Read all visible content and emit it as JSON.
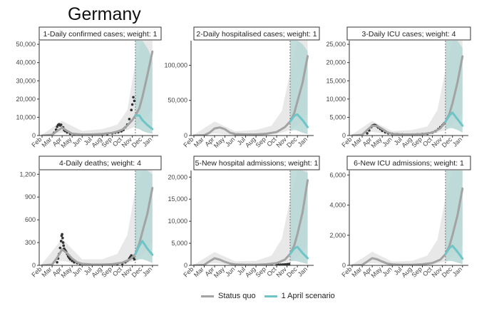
{
  "figure_title": "Germany",
  "colors": {
    "status_quo": "#a3a3a3",
    "april_scenario": "#6ec4c6",
    "band_status_quo": "#e8e8e8",
    "band_april": "#b5d7d5",
    "observed": "#333333"
  },
  "legend": [
    {
      "label": "Status quo",
      "color": "#a3a3a3"
    },
    {
      "label": "1 April scenario",
      "color": "#6ec4c6"
    }
  ],
  "chart_data": [
    {
      "type": "line",
      "title": "1-Daily confirmed cases; weight: 1",
      "x_ticks": [
        "Feb",
        "Mar",
        "Apr",
        "May",
        "Jun",
        "Jul",
        "Aug",
        "Sep",
        "Oct",
        "Nov",
        "Dec",
        "Jan"
      ],
      "y_ticks": [
        "0",
        "10,000",
        "20,000",
        "30,000",
        "40,000",
        "50,000"
      ],
      "ylim": [
        0,
        52000
      ],
      "vline_month": 9.3,
      "series": [
        {
          "name": "Status quo",
          "x": [
            0,
            1,
            1.5,
            2,
            2.5,
            3,
            4,
            5,
            6,
            7,
            7.5,
            8,
            8.5,
            9,
            9.3,
            9.7,
            10,
            10.5,
            11
          ],
          "y": [
            0,
            400,
            2500,
            4300,
            2500,
            1000,
            500,
            600,
            900,
            1500,
            2200,
            3200,
            5500,
            8500,
            11000,
            15000,
            21000,
            33000,
            46000
          ]
        },
        {
          "name": "1 April scenario",
          "x": [
            9.3,
            9.7,
            10,
            10.5,
            11
          ],
          "y": [
            11000,
            11000,
            8500,
            5800,
            3500
          ]
        }
      ],
      "band_status_quo": {
        "x": [
          0,
          2,
          4,
          6,
          7.5,
          8.5,
          9.3,
          10,
          10.5,
          11
        ],
        "lo": [
          0,
          1500,
          300,
          600,
          1200,
          3000,
          5000,
          8000,
          10000,
          14000
        ],
        "hi": [
          500,
          8000,
          2500,
          3500,
          6000,
          14000,
          40000,
          75000,
          100000,
          130000
        ]
      },
      "band_april": {
        "x": [
          9.3,
          9.7,
          10,
          10.5,
          11
        ],
        "lo": [
          4000,
          3500,
          2500,
          1500,
          1000
        ],
        "hi": [
          60000,
          60000,
          55000,
          48000,
          42000
        ]
      },
      "observed": {
        "x": [
          1.2,
          1.4,
          1.5,
          1.6,
          1.7,
          1.8,
          1.9,
          2,
          2.1,
          2.2,
          2.3,
          2.5,
          2.8,
          3.2,
          4,
          5,
          6,
          6.5,
          7,
          7.3,
          7.6,
          7.9,
          8.1,
          8.3,
          8.5,
          8.7,
          8.9,
          9,
          9.1,
          9.2
        ],
        "y": [
          1500,
          3200,
          4800,
          5800,
          6200,
          5500,
          5900,
          4200,
          4500,
          3000,
          2500,
          1700,
          1000,
          700,
          400,
          300,
          500,
          800,
          1200,
          1600,
          1800,
          2300,
          3000,
          4500,
          6000,
          9000,
          14000,
          17000,
          21000,
          19000
        ]
      }
    },
    {
      "type": "line",
      "title": "2-Daily hospitalised cases; weight: 1",
      "x_ticks": [
        "Feb",
        "Mar",
        "Apr",
        "May",
        "Jun",
        "Jul",
        "Aug",
        "Sep",
        "Oct",
        "Nov",
        "Dec",
        "Jan"
      ],
      "y_ticks": [
        "0",
        "50,000",
        "100,000"
      ],
      "ylim": [
        0,
        135000
      ],
      "vline_month": 9.3,
      "series": [
        {
          "name": "Status quo",
          "x": [
            0,
            1,
            1.5,
            2,
            2.5,
            3,
            3.5,
            4,
            5,
            6,
            7,
            8,
            8.8,
            9.3,
            9.7,
            10,
            10.5,
            11
          ],
          "y": [
            0,
            500,
            4000,
            10000,
            11500,
            9000,
            4000,
            2000,
            1500,
            1500,
            2500,
            5000,
            12000,
            20000,
            32000,
            48000,
            75000,
            113000
          ]
        },
        {
          "name": "1 April scenario",
          "x": [
            9.3,
            9.7,
            10,
            10.5,
            11
          ],
          "y": [
            20000,
            28000,
            30000,
            22000,
            12000
          ]
        }
      ],
      "band_status_quo": {
        "x": [
          0,
          2,
          4,
          6,
          7.5,
          8.5,
          9.3,
          10,
          10.5,
          11
        ],
        "lo": [
          0,
          3000,
          500,
          800,
          1500,
          4000,
          8000,
          15000,
          22000,
          30000
        ],
        "hi": [
          1000,
          20000,
          6000,
          8000,
          14000,
          35000,
          90000,
          180000,
          250000,
          300000
        ]
      },
      "band_april": {
        "x": [
          9.3,
          9.7,
          10,
          10.5,
          11
        ],
        "lo": [
          6000,
          8000,
          7000,
          4000,
          2000
        ],
        "hi": [
          140000,
          140000,
          140000,
          130000,
          120000
        ]
      },
      "observed": {
        "x": [],
        "y": []
      }
    },
    {
      "type": "line",
      "title": "3-Daily ICU cases; weight: 4",
      "x_ticks": [
        "Feb",
        "Mar",
        "Apr",
        "May",
        "Jun",
        "Jul",
        "Aug",
        "Sep",
        "Oct",
        "Nov",
        "Dec",
        "Jan"
      ],
      "y_ticks": [
        "0",
        "5,000",
        "10,000",
        "15,000",
        "20,000",
        "25,000"
      ],
      "ylim": [
        0,
        26000
      ],
      "vline_month": 9.3,
      "series": [
        {
          "name": "Status quo",
          "x": [
            0,
            1,
            1.5,
            2,
            2.5,
            3,
            3.5,
            4,
            5,
            6,
            7,
            8,
            8.8,
            9.3,
            9.7,
            10,
            10.5,
            11
          ],
          "y": [
            0,
            200,
            1500,
            2700,
            2600,
            1800,
            900,
            450,
            300,
            300,
            400,
            800,
            2000,
            3800,
            6000,
            8800,
            14500,
            21700
          ]
        },
        {
          "name": "1 April scenario",
          "x": [
            9.3,
            9.7,
            10,
            10.5,
            11
          ],
          "y": [
            3800,
            5500,
            6300,
            4500,
            2700
          ]
        }
      ],
      "band_status_quo": {
        "x": [
          0,
          2,
          4,
          6,
          7.5,
          8.5,
          9.3,
          10,
          10.5,
          11
        ],
        "lo": [
          0,
          1000,
          200,
          200,
          300,
          800,
          1500,
          3000,
          4500,
          6000
        ],
        "hi": [
          300,
          4000,
          1200,
          1500,
          2500,
          7000,
          18000,
          34000,
          45000,
          60000
        ]
      },
      "band_april": {
        "x": [
          9.3,
          9.7,
          10,
          10.5,
          11
        ],
        "lo": [
          1500,
          2000,
          2000,
          1500,
          800
        ],
        "hi": [
          27000,
          27000,
          27000,
          26000,
          24000
        ]
      },
      "observed": {
        "x": [
          1.5,
          1.7,
          1.9,
          2,
          2.1,
          2.2,
          2.3,
          2.4,
          2.5,
          2.6,
          2.8,
          3,
          3.3,
          3.6,
          4,
          4.5,
          5,
          5.5,
          6,
          6.5,
          7,
          7.5,
          8,
          8.3,
          8.6,
          8.8,
          9,
          9.1,
          9.2
        ],
        "y": [
          600,
          1400,
          2300,
          2700,
          2800,
          2900,
          2850,
          2700,
          2500,
          2200,
          1800,
          1300,
          900,
          600,
          450,
          350,
          280,
          250,
          250,
          300,
          400,
          500,
          800,
          1200,
          1800,
          2300,
          2800,
          3100,
          3400
        ]
      }
    },
    {
      "type": "line",
      "title": "4-Daily deaths; weight: 4",
      "x_ticks": [
        "Feb",
        "Mar",
        "Apr",
        "May",
        "Jun",
        "Jul",
        "Aug",
        "Sep",
        "Oct",
        "Nov",
        "Dec",
        "Jan"
      ],
      "y_ticks": [
        "0",
        "300",
        "600",
        "900",
        "1,200"
      ],
      "ylim": [
        0,
        1250
      ],
      "vline_month": 9.3,
      "series": [
        {
          "name": "Status quo",
          "x": [
            0,
            1,
            1.5,
            2,
            2.5,
            3,
            3.5,
            4,
            5,
            6,
            7,
            8,
            8.8,
            9.3,
            9.7,
            10,
            10.5,
            11
          ],
          "y": [
            0,
            10,
            100,
            210,
            160,
            90,
            40,
            20,
            10,
            10,
            15,
            35,
            80,
            150,
            290,
            440,
            680,
            1020
          ]
        },
        {
          "name": "1 April scenario",
          "x": [
            9.3,
            9.7,
            10,
            10.5,
            11
          ],
          "y": [
            150,
            260,
            320,
            220,
            140
          ]
        }
      ],
      "band_status_quo": {
        "x": [
          0,
          2,
          4,
          6,
          7.5,
          8.5,
          9.3,
          10,
          10.5,
          11
        ],
        "lo": [
          0,
          60,
          5,
          5,
          10,
          30,
          60,
          150,
          220,
          300
        ],
        "hi": [
          20,
          350,
          80,
          80,
          150,
          400,
          1000,
          1500,
          2200,
          3000
        ]
      },
      "band_april": {
        "x": [
          9.3,
          9.7,
          10,
          10.5,
          11
        ],
        "lo": [
          60,
          80,
          80,
          60,
          30
        ],
        "hi": [
          1300,
          1300,
          1300,
          1250,
          1200
        ]
      },
      "observed": {
        "x": [
          1.5,
          1.6,
          1.7,
          1.8,
          1.9,
          1.95,
          2,
          2.05,
          2.1,
          2.15,
          2.2,
          2.3,
          2.4,
          2.5,
          2.6,
          2.7,
          2.8,
          3,
          3.2,
          3.5,
          3.8,
          4.2,
          5,
          6,
          7,
          7.5,
          8,
          8.3,
          8.5,
          8.7,
          8.8,
          8.9,
          9,
          9.1,
          9.2
        ],
        "y": [
          40,
          90,
          150,
          230,
          320,
          390,
          410,
          360,
          300,
          260,
          220,
          200,
          180,
          150,
          120,
          100,
          80,
          60,
          40,
          30,
          15,
          10,
          5,
          5,
          8,
          10,
          20,
          40,
          60,
          90,
          110,
          130,
          120,
          100,
          80
        ]
      }
    },
    {
      "type": "line",
      "title": "5-New hospital admissions; weight: 1",
      "x_ticks": [
        "Feb",
        "Mar",
        "Apr",
        "May",
        "Jun",
        "Jul",
        "Aug",
        "Sep",
        "Oct",
        "Nov",
        "Dec",
        "Jan"
      ],
      "y_ticks": [
        "0",
        "5,000",
        "10,000",
        "15,000",
        "20,000"
      ],
      "ylim": [
        0,
        21500
      ],
      "vline_month": 9.3,
      "series": [
        {
          "name": "Status quo",
          "x": [
            0,
            1,
            1.5,
            2,
            2.5,
            3,
            3.5,
            4,
            5,
            6,
            7,
            8,
            8.8,
            9.3,
            9.7,
            10,
            10.5,
            11
          ],
          "y": [
            0,
            100,
            900,
            1600,
            1300,
            800,
            400,
            200,
            150,
            150,
            250,
            500,
            1300,
            2600,
            4500,
            7000,
            12000,
            19300
          ]
        },
        {
          "name": "1 April scenario",
          "x": [
            9.3,
            9.7,
            10,
            10.5,
            11
          ],
          "y": [
            2600,
            3800,
            4200,
            2800,
            1600
          ]
        }
      ],
      "band_status_quo": {
        "x": [
          0,
          2,
          4,
          6,
          7.5,
          8.5,
          9.3,
          10,
          10.5,
          11
        ],
        "lo": [
          0,
          500,
          80,
          80,
          150,
          400,
          900,
          2000,
          3000,
          4500
        ],
        "hi": [
          150,
          3000,
          900,
          1000,
          2200,
          6000,
          15000,
          30000,
          40000,
          50000
        ]
      },
      "band_april": {
        "x": [
          9.3,
          9.7,
          10,
          10.5,
          11
        ],
        "lo": [
          900,
          1000,
          900,
          600,
          300
        ],
        "hi": [
          22500,
          22500,
          22500,
          22000,
          21000
        ]
      },
      "observed": {
        "x": [
          6.5,
          7,
          7.5,
          8,
          8.2,
          8.4,
          8.6,
          8.8,
          9,
          9.1,
          9.2
        ],
        "y": [
          50,
          80,
          100,
          120,
          130,
          150,
          180,
          220,
          260,
          280,
          300
        ]
      }
    },
    {
      "type": "line",
      "title": "6-New ICU admissions; weight: 1",
      "x_ticks": [
        "Feb",
        "Mar",
        "Apr",
        "May",
        "Jun",
        "Jul",
        "Aug",
        "Sep",
        "Oct",
        "Nov",
        "Dec",
        "Jan"
      ],
      "y_ticks": [
        "0",
        "2,000",
        "4,000",
        "6,000"
      ],
      "ylim": [
        0,
        6300
      ],
      "vline_month": 9.3,
      "series": [
        {
          "name": "Status quo",
          "x": [
            0,
            1,
            1.5,
            2,
            2.5,
            3,
            3.5,
            4,
            5,
            6,
            7,
            8,
            8.8,
            9.3,
            9.7,
            10,
            10.5,
            11
          ],
          "y": [
            0,
            30,
            250,
            480,
            400,
            250,
            120,
            60,
            40,
            40,
            70,
            150,
            380,
            750,
            1300,
            2000,
            3300,
            5100
          ]
        },
        {
          "name": "1 April scenario",
          "x": [
            9.3,
            9.7,
            10,
            10.5,
            11
          ],
          "y": [
            750,
            1150,
            1300,
            900,
            450
          ]
        }
      ],
      "band_status_quo": {
        "x": [
          0,
          2,
          4,
          6,
          7.5,
          8.5,
          9.3,
          10,
          10.5,
          11
        ],
        "lo": [
          0,
          150,
          20,
          20,
          40,
          120,
          260,
          600,
          900,
          1300
        ],
        "hi": [
          50,
          900,
          250,
          300,
          650,
          1700,
          4500,
          9000,
          12000,
          15000
        ]
      },
      "band_april": {
        "x": [
          9.3,
          9.7,
          10,
          10.5,
          11
        ],
        "lo": [
          260,
          300,
          280,
          180,
          80
        ],
        "hi": [
          6600,
          6600,
          6600,
          6500,
          6300
        ]
      },
      "observed": {
        "x": [],
        "y": []
      }
    }
  ]
}
